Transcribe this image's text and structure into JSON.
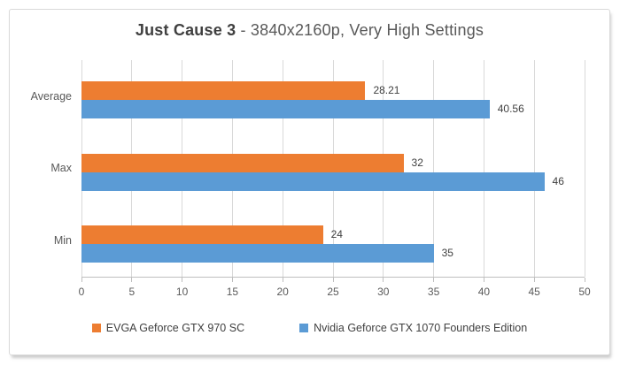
{
  "chart_data": {
    "type": "bar",
    "orientation": "horizontal",
    "title_bold": "Just Cause 3",
    "title_regular": " - 3840x2160p, Very High Settings",
    "categories": [
      "Average",
      "Max",
      "Min"
    ],
    "series": [
      {
        "name": "EVGA Geforce GTX 970 SC",
        "color": "#ED7D31",
        "values": [
          28.21,
          32,
          24
        ]
      },
      {
        "name": "Nvidia Geforce GTX 1070 Founders Edition",
        "color": "#5B9BD5",
        "values": [
          40.56,
          46,
          35
        ]
      }
    ],
    "xlim": [
      0,
      50
    ],
    "xticks": [
      0,
      5,
      10,
      15,
      20,
      25,
      30,
      35,
      40,
      45,
      50
    ],
    "grid": true,
    "data_labels": true,
    "legend_position": "bottom"
  }
}
